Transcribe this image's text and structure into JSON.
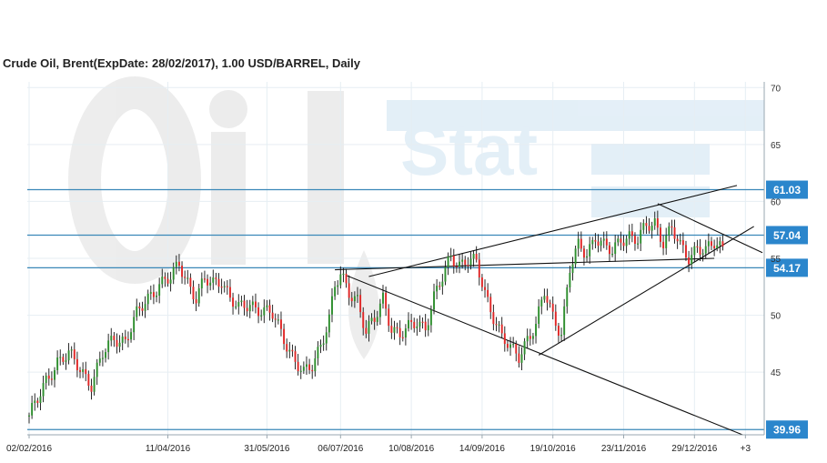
{
  "chart_data": {
    "type": "candlestick",
    "title": "Crude Oil, Brent(ExpDate: 28/02/2017), 1.00 USD/BARREL, Daily",
    "watermark": "OilStat",
    "ylim": [
      39.5,
      70.5
    ],
    "y_ticks": [
      45,
      50,
      55,
      60,
      65,
      70
    ],
    "x_ticks": [
      {
        "i": 0,
        "label": "02/02/2016"
      },
      {
        "i": 49,
        "label": "11/04/2016"
      },
      {
        "i": 84,
        "label": "31/05/2016"
      },
      {
        "i": 110,
        "label": "06/07/2016"
      },
      {
        "i": 135,
        "label": "10/08/2016"
      },
      {
        "i": 160,
        "label": "14/09/2016"
      },
      {
        "i": 185,
        "label": "19/10/2016"
      },
      {
        "i": 210,
        "label": "23/11/2016"
      },
      {
        "i": 235,
        "label": "29/12/2016"
      },
      {
        "i": 253,
        "label": "+3"
      }
    ],
    "levels": [
      {
        "value": 61.03,
        "label": "61.03"
      },
      {
        "value": 57.04,
        "label": "57.04"
      },
      {
        "value": 54.17,
        "label": "54.17"
      },
      {
        "value": 39.96,
        "label": "39.96"
      }
    ],
    "trendlines": [
      {
        "x1": 108,
        "y1": 54.0,
        "x2": 242,
        "y2": 55.0
      },
      {
        "x1": 112,
        "y1": 53.5,
        "x2": 252,
        "y2": 39.5
      },
      {
        "x1": 120,
        "y1": 53.4,
        "x2": 250,
        "y2": 61.4
      },
      {
        "x1": 180,
        "y1": 46.5,
        "x2": 256,
        "y2": 57.8
      },
      {
        "x1": 222,
        "y1": 59.8,
        "x2": 259,
        "y2": 55.5
      }
    ],
    "colors": {
      "up": "#2f8f2f",
      "down": "#e02828",
      "level": "#3a88b8",
      "label_bg": "#2b86cc",
      "trend": "#111111"
    },
    "anchors": [
      [
        0,
        41.2
      ],
      [
        3,
        42.5
      ],
      [
        6,
        44.2
      ],
      [
        10,
        46.0
      ],
      [
        14,
        46.5
      ],
      [
        18,
        45.3
      ],
      [
        22,
        44.0
      ],
      [
        26,
        46.5
      ],
      [
        30,
        48.0
      ],
      [
        34,
        47.8
      ],
      [
        38,
        50.0
      ],
      [
        42,
        51.5
      ],
      [
        46,
        52.8
      ],
      [
        50,
        53.2
      ],
      [
        53,
        54.5
      ],
      [
        56,
        53.0
      ],
      [
        59,
        51.5
      ],
      [
        62,
        53.0
      ],
      [
        65,
        52.8
      ],
      [
        68,
        53.2
      ],
      [
        71,
        51.5
      ],
      [
        74,
        50.5
      ],
      [
        78,
        51.0
      ],
      [
        82,
        50.5
      ],
      [
        86,
        50.0
      ],
      [
        90,
        48.0
      ],
      [
        94,
        46.0
      ],
      [
        97,
        44.8
      ],
      [
        100,
        45.5
      ],
      [
        103,
        47.5
      ],
      [
        106,
        49.8
      ],
      [
        108,
        52.5
      ],
      [
        110,
        53.4
      ],
      [
        113,
        52.0
      ],
      [
        116,
        51.5
      ],
      [
        119,
        48.5
      ],
      [
        122,
        49.5
      ],
      [
        125,
        51.5
      ],
      [
        128,
        49.0
      ],
      [
        131,
        48.2
      ],
      [
        134,
        48.8
      ],
      [
        137,
        49.5
      ],
      [
        140,
        49.0
      ],
      [
        143,
        51.5
      ],
      [
        146,
        53.2
      ],
      [
        149,
        55.3
      ],
      [
        152,
        54.5
      ],
      [
        155,
        54.8
      ],
      [
        158,
        54.5
      ],
      [
        161,
        52.0
      ],
      [
        164,
        50.0
      ],
      [
        167,
        48.0
      ],
      [
        170,
        47.0
      ],
      [
        173,
        46.5
      ],
      [
        176,
        48.0
      ],
      [
        179,
        49.0
      ],
      [
        182,
        52.0
      ],
      [
        185,
        50.0
      ],
      [
        188,
        48.5
      ],
      [
        191,
        54.0
      ],
      [
        194,
        56.0
      ],
      [
        197,
        55.5
      ],
      [
        200,
        57.0
      ],
      [
        203,
        56.0
      ],
      [
        206,
        55.5
      ],
      [
        209,
        56.8
      ],
      [
        212,
        57.0
      ],
      [
        215,
        56.5
      ],
      [
        218,
        57.8
      ],
      [
        221,
        58.2
      ],
      [
        224,
        56.5
      ],
      [
        227,
        57.5
      ],
      [
        230,
        56.0
      ],
      [
        233,
        55.2
      ],
      [
        236,
        56.0
      ],
      [
        239,
        55.5
      ],
      [
        242,
        56.3
      ],
      [
        245,
        56.0
      ]
    ]
  }
}
